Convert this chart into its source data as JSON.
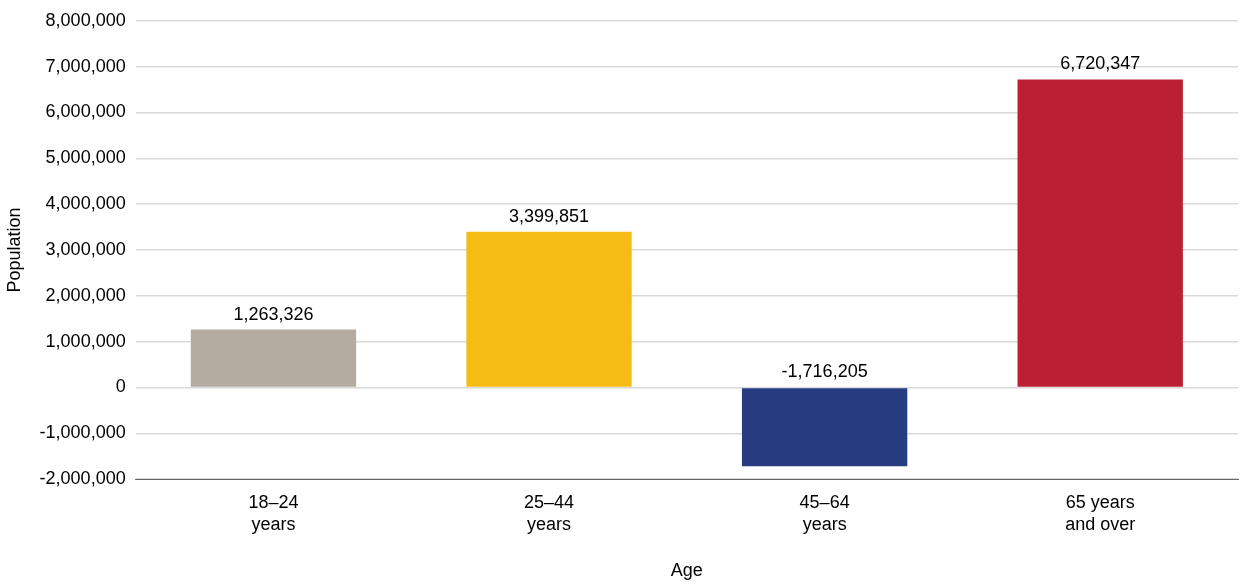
{
  "chart_data": {
    "type": "bar",
    "xlabel": "Age",
    "ylabel": "Population",
    "categories": [
      "18–24\nyears",
      "25–44\nyears",
      "45–64\nyears",
      "65 years\nand over"
    ],
    "values": [
      1263326,
      3399851,
      -1716205,
      6720347
    ],
    "value_labels": [
      "1,263,326",
      "3,399,851",
      "-1,716,205",
      "6,720,347"
    ],
    "colors": [
      "#b4aba1",
      "#f5bc16",
      "#253c80",
      "#bb1f31"
    ],
    "ylim": [
      -2000000,
      8000000
    ],
    "yticks": [
      {
        "value": -2000000,
        "label": "-2,000,000"
      },
      {
        "value": -1000000,
        "label": "-1,000,000"
      },
      0,
      {
        "value": 1000000,
        "label": "1,000,000"
      },
      {
        "value": 2000000,
        "label": "2,000,000"
      },
      {
        "value": 3000000,
        "label": "3,000,000"
      },
      {
        "value": 4000000,
        "label": "4,000,000"
      },
      {
        "value": 5000000,
        "label": "5,000,000"
      },
      {
        "value": 6000000,
        "label": "6,000,000"
      },
      {
        "value": 7000000,
        "label": "7,000,000"
      },
      {
        "value": 8000000,
        "label": "8,000,000"
      }
    ],
    "grid": "y",
    "legend": false
  }
}
